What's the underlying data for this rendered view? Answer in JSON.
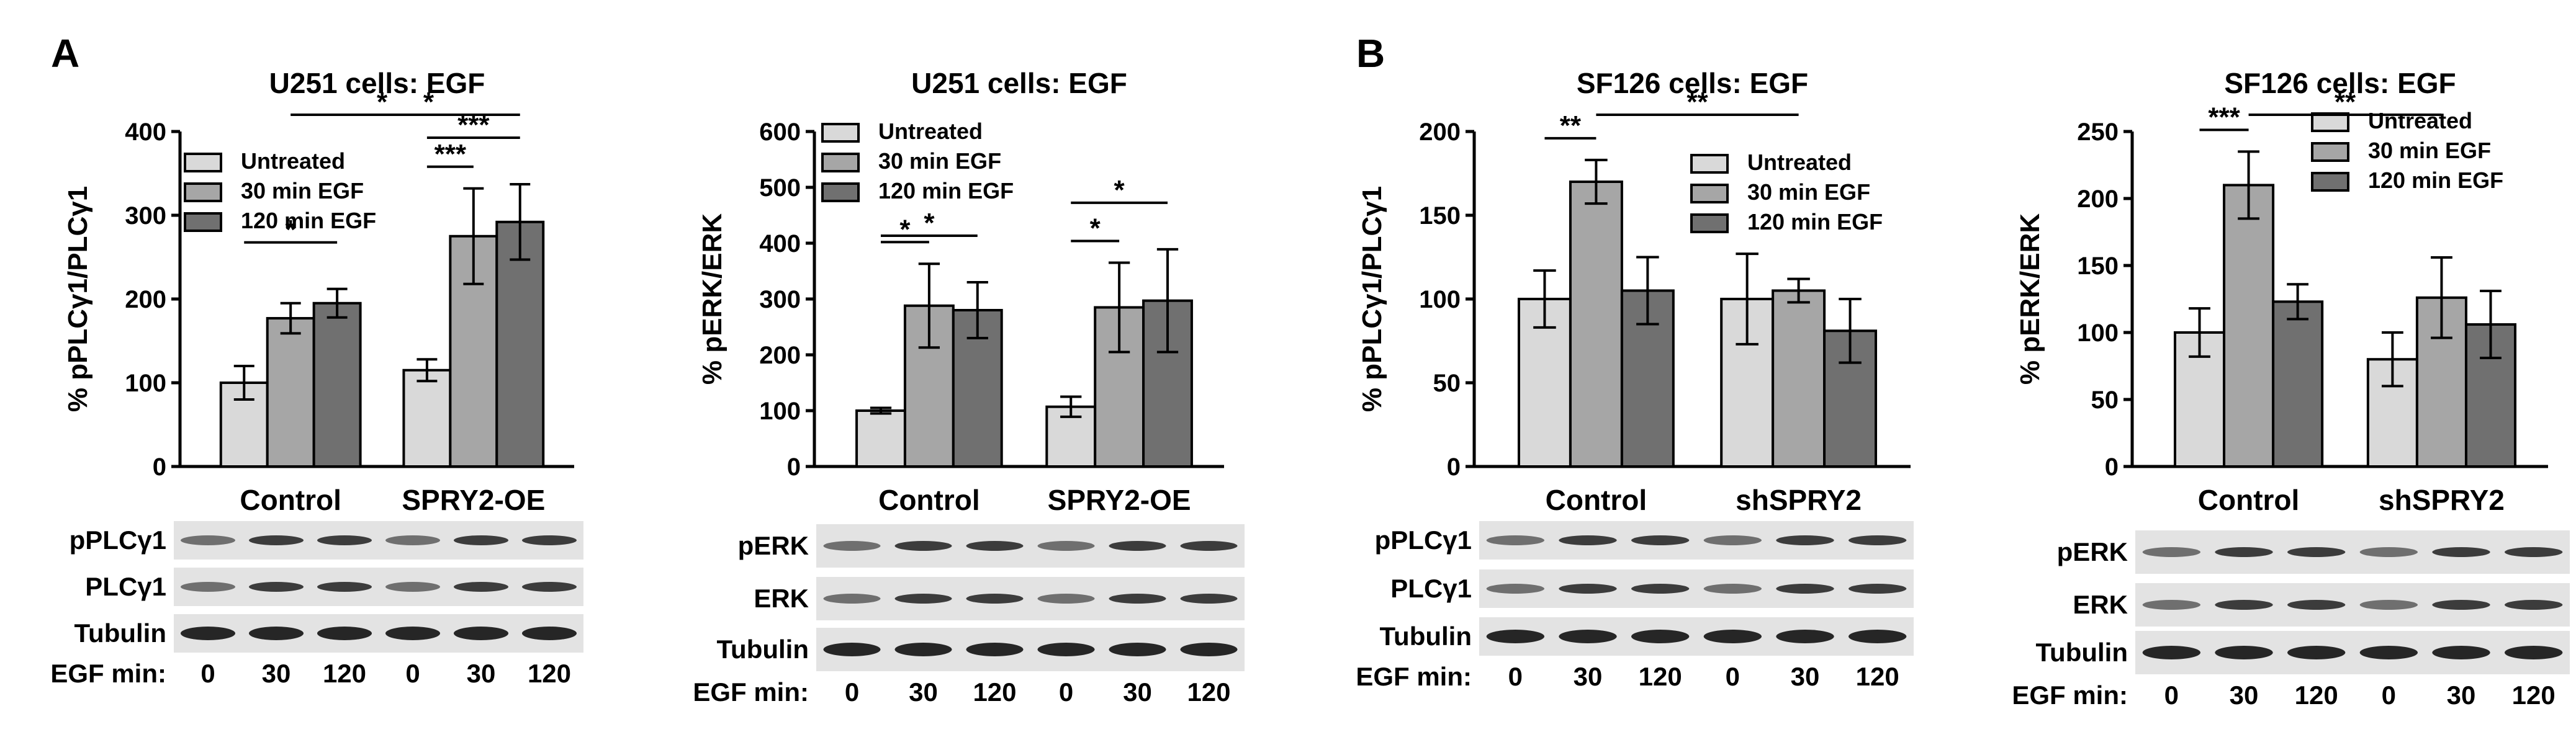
{
  "panel_labels": [
    "A",
    "B"
  ],
  "blot_labels": {
    "egf_label": "EGF min:",
    "lanes": [
      "0",
      "30",
      "120",
      "0",
      "30",
      "120"
    ]
  },
  "colors": {
    "untreated": "#d9d9d9",
    "egf30": "#a6a6a6",
    "egf120": "#707070"
  },
  "chart_data": [
    {
      "type": "bar",
      "panel": "A",
      "title": "U251 cells: EGF",
      "ylabel": "% pPLCγ1/PLCγ1",
      "ylim": [
        0,
        400
      ],
      "yticks": [
        0,
        100,
        200,
        300,
        400
      ],
      "categories": [
        "Control",
        "SPRY2-OE"
      ],
      "legend": [
        "Untreated",
        "30 min EGF",
        "120 min  EGF"
      ],
      "series": [
        {
          "name": "Untreated",
          "values": [
            100,
            115
          ],
          "err": [
            20,
            13
          ]
        },
        {
          "name": "30 min EGF",
          "values": [
            177,
            275
          ],
          "err": [
            18,
            57
          ]
        },
        {
          "name": "120 min EGF",
          "values": [
            195,
            292
          ],
          "err": [
            17,
            45
          ]
        }
      ],
      "significance": [
        {
          "from": [
            0,
            0
          ],
          "to": [
            0,
            2
          ],
          "label": "*"
        },
        {
          "from": [
            0,
            1
          ],
          "to": [
            1,
            1
          ],
          "label": "*"
        },
        {
          "from": [
            0,
            2
          ],
          "to": [
            1,
            2
          ],
          "label": "*"
        },
        {
          "from": [
            1,
            0
          ],
          "to": [
            1,
            1
          ],
          "label": "***"
        },
        {
          "from": [
            1,
            0
          ],
          "to": [
            1,
            2
          ],
          "label": "***"
        }
      ],
      "blots": [
        "pPLCγ1",
        "PLCγ1",
        "Tubulin"
      ]
    },
    {
      "type": "bar",
      "panel": "A",
      "title": "U251 cells: EGF",
      "ylabel": "% pERK/ERK",
      "ylim": [
        0,
        600
      ],
      "yticks": [
        0,
        100,
        200,
        300,
        400,
        500,
        600
      ],
      "categories": [
        "Control",
        "SPRY2-OE"
      ],
      "legend": [
        "Untreated",
        "30 min EGF",
        "120 min EGF"
      ],
      "series": [
        {
          "name": "Untreated",
          "values": [
            100,
            107
          ],
          "err": [
            5,
            18
          ]
        },
        {
          "name": "30 min EGF",
          "values": [
            288,
            285
          ],
          "err": [
            75,
            80
          ]
        },
        {
          "name": "120 min EGF",
          "values": [
            280,
            297
          ],
          "err": [
            50,
            92
          ]
        }
      ],
      "significance": [
        {
          "from": [
            0,
            0
          ],
          "to": [
            0,
            1
          ],
          "label": "*"
        },
        {
          "from": [
            0,
            0
          ],
          "to": [
            0,
            2
          ],
          "label": "*"
        },
        {
          "from": [
            1,
            0
          ],
          "to": [
            1,
            1
          ],
          "label": "*"
        },
        {
          "from": [
            1,
            0
          ],
          "to": [
            1,
            2
          ],
          "label": "*"
        }
      ],
      "blots": [
        "pERK",
        "ERK",
        "Tubulin"
      ]
    },
    {
      "type": "bar",
      "panel": "B",
      "title": "SF126 cells: EGF",
      "ylabel": "% pPLCγ1/PLCγ1",
      "ylim": [
        0,
        200
      ],
      "yticks": [
        0,
        50,
        100,
        150,
        200
      ],
      "categories": [
        "Control",
        "shSPRY2"
      ],
      "legend": [
        "Untreated",
        "30 min EGF",
        "120 min EGF"
      ],
      "series": [
        {
          "name": "Untreated",
          "values": [
            100,
            100
          ],
          "err": [
            17,
            27
          ]
        },
        {
          "name": "30 min EGF",
          "values": [
            170,
            105
          ],
          "err": [
            13,
            7
          ]
        },
        {
          "name": "120 min EGF",
          "values": [
            105,
            81
          ],
          "err": [
            20,
            19
          ]
        }
      ],
      "significance": [
        {
          "from": [
            0,
            0
          ],
          "to": [
            0,
            1
          ],
          "label": "**"
        },
        {
          "from": [
            0,
            1
          ],
          "to": [
            1,
            1
          ],
          "label": "**"
        }
      ],
      "blots": [
        "pPLCγ1",
        "PLCγ1",
        "Tubulin"
      ]
    },
    {
      "type": "bar",
      "panel": "B",
      "title": "SF126 cells: EGF",
      "ylabel": "% pERK/ERK",
      "ylim": [
        0,
        250
      ],
      "yticks": [
        0,
        50,
        100,
        150,
        200,
        250
      ],
      "categories": [
        "Control",
        "shSPRY2"
      ],
      "legend": [
        "Untreated",
        "30 min EGF",
        "120 min EGF"
      ],
      "series": [
        {
          "name": "Untreated",
          "values": [
            100,
            80
          ],
          "err": [
            18,
            20
          ]
        },
        {
          "name": "30 min EGF",
          "values": [
            210,
            126
          ],
          "err": [
            25,
            30
          ]
        },
        {
          "name": "120 min EGF",
          "values": [
            123,
            106
          ],
          "err": [
            13,
            25
          ]
        }
      ],
      "significance": [
        {
          "from": [
            0,
            0
          ],
          "to": [
            0,
            1
          ],
          "label": "***"
        },
        {
          "from": [
            0,
            1
          ],
          "to": [
            1,
            1
          ],
          "label": "**"
        }
      ],
      "blots": [
        "pERK",
        "ERK",
        "Tubulin"
      ]
    }
  ]
}
